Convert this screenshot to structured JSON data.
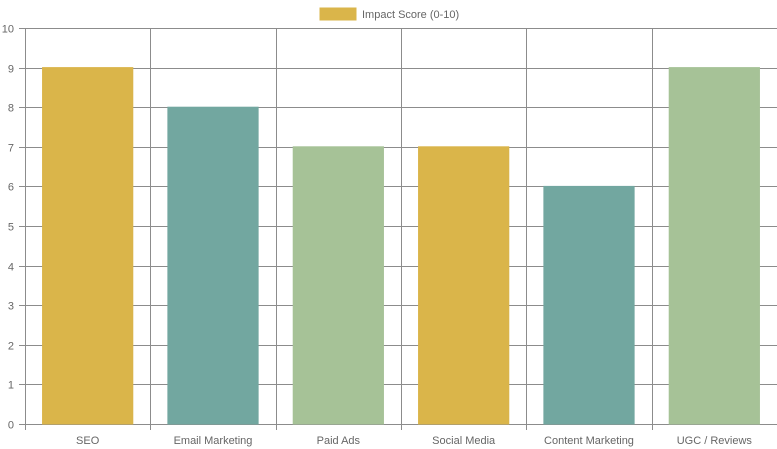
{
  "chart_data": {
    "type": "bar",
    "categories": [
      "SEO",
      "Email Marketing",
      "Paid Ads",
      "Social Media",
      "Content Marketing",
      "UGC / Reviews"
    ],
    "series": [
      {
        "name": "Impact Score (0-10)",
        "values": [
          9,
          8,
          7,
          7,
          6,
          9
        ]
      }
    ],
    "bar_colors": [
      "#dab54a",
      "#72a7a0",
      "#a6c297",
      "#dab54a",
      "#72a7a0",
      "#a6c297"
    ],
    "legend_color": "#dab54a",
    "gridline_color": "#8c8c8c",
    "ylim": [
      0,
      10
    ],
    "yticks": [
      0,
      1,
      2,
      3,
      4,
      5,
      6,
      7,
      8,
      9,
      10
    ],
    "grid": true,
    "legend_position": "top-center"
  }
}
